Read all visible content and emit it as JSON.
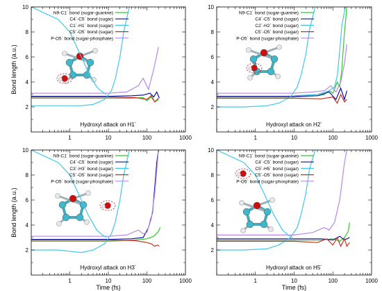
{
  "chart_data": [
    {
      "type": "line",
      "xscale": "log",
      "xlim": [
        0.1,
        1000
      ],
      "ylim": [
        0,
        10
      ],
      "xticks": [
        "1",
        "10",
        "100",
        "1000"
      ],
      "yticks": [
        "2",
        "4",
        "6",
        "8",
        "10"
      ],
      "xlabel": "",
      "ylabel": "Bond length (a.u.)",
      "annotation": "Hydroxyl attack on H1´",
      "legend": "top-left",
      "series": [
        {
          "name": "N9-C1´ bond (sugar-guanine)",
          "color": "#2ecc2e",
          "x": [
            0.1,
            10,
            40,
            80,
            100,
            130,
            160,
            200
          ],
          "y": [
            2.7,
            2.7,
            2.7,
            2.75,
            2.5,
            2.8,
            2.4,
            2.6
          ]
        },
        {
          "name": "C4´-C5´ bond (sugar)",
          "color": "#1010a0",
          "x": [
            0.1,
            10,
            40,
            80,
            120,
            150,
            180,
            210
          ],
          "y": [
            2.85,
            2.85,
            2.9,
            2.95,
            3.1,
            2.8,
            3.2,
            2.7
          ]
        },
        {
          "name": "C1´-H1´ bond (sugar)",
          "color": "#40c8ee",
          "x": [
            0.1,
            0.5,
            1,
            2,
            4,
            8,
            12,
            15,
            20,
            25,
            35
          ],
          "y": [
            2.1,
            2.1,
            2.1,
            2.1,
            2.2,
            2.6,
            3.3,
            4.2,
            6.0,
            8.0,
            10
          ]
        },
        {
          "name": "C5´-O5´ bond (sugar)",
          "color": "#c8301c",
          "x": [
            0.1,
            10,
            50,
            100,
            130,
            160,
            200
          ],
          "y": [
            2.8,
            2.8,
            2.75,
            2.6,
            2.9,
            2.4,
            2.7
          ]
        },
        {
          "name": "P-O5´ bond (sugar-phosphate)",
          "color": "#b888e8",
          "x": [
            0.1,
            10,
            30,
            60,
            80,
            110,
            150,
            200
          ],
          "y": [
            3.1,
            3.1,
            3.2,
            3.7,
            4.3,
            3.4,
            5.0,
            6.8
          ]
        },
        {
          "name": "",
          "color": "#40c8ee",
          "x": [
            0.1,
            0.5,
            1,
            2,
            3,
            5,
            7,
            9
          ],
          "y": [
            10,
            9.0,
            8.0,
            6.0,
            4.8,
            3.6,
            3.2,
            3.0
          ]
        }
      ]
    },
    {
      "type": "line",
      "xscale": "log",
      "xlim": [
        0.1,
        1000
      ],
      "ylim": [
        0,
        10
      ],
      "xticks": [
        "1",
        "10",
        "100",
        "1000"
      ],
      "yticks": [
        "2",
        "4",
        "6",
        "8",
        "10"
      ],
      "xlabel": "",
      "ylabel": "",
      "annotation": "Hydroxyl attack on H2´",
      "legend": "top-left",
      "series": [
        {
          "name": "N9-C1´ bond (sugar-guanine)",
          "color": "#2ecc2e",
          "x": [
            0.1,
            10,
            40,
            60,
            80,
            100,
            130,
            150,
            170,
            200,
            230
          ],
          "y": [
            2.8,
            2.8,
            2.9,
            3.0,
            3.3,
            3.1,
            4.0,
            3.6,
            5.0,
            8.0,
            10
          ]
        },
        {
          "name": "C4´-C5´ bond (sugar)",
          "color": "#1010a0",
          "x": [
            0.1,
            10,
            40,
            80,
            120,
            160,
            200,
            230
          ],
          "y": [
            2.85,
            2.85,
            2.9,
            3.2,
            2.6,
            3.5,
            2.6,
            3.3
          ]
        },
        {
          "name": "C2´-H2´ bond (sugar)",
          "color": "#40c8ee",
          "x": [
            0.1,
            0.5,
            1,
            2,
            4,
            8,
            12,
            15,
            20,
            25,
            35
          ],
          "y": [
            2.0,
            2.0,
            2.05,
            2.1,
            2.3,
            2.8,
            3.6,
            4.5,
            6.2,
            8.2,
            10
          ]
        },
        {
          "name": "C5´-O5´ bond (sugar)",
          "color": "#c8301c",
          "x": [
            0.1,
            10,
            50,
            100,
            130,
            160,
            200,
            230
          ],
          "y": [
            2.7,
            2.7,
            2.65,
            2.8,
            2.3,
            3.0,
            2.4,
            2.6
          ]
        },
        {
          "name": "P-O5´ bond (sugar-phosphate)",
          "color": "#b888e8",
          "x": [
            0.1,
            10,
            30,
            60,
            90,
            120,
            160,
            200,
            230
          ],
          "y": [
            3.1,
            3.1,
            3.2,
            3.3,
            3.7,
            3.2,
            4.0,
            5.5,
            7.0
          ]
        },
        {
          "name": "",
          "color": "#40c8ee",
          "x": [
            10,
            40,
            80,
            110,
            130,
            150,
            170,
            210
          ],
          "y": [
            2.9,
            3.0,
            3.3,
            3.6,
            4.5,
            6.5,
            8.5,
            10
          ]
        }
      ]
    },
    {
      "type": "line",
      "xscale": "log",
      "xlim": [
        0.1,
        1000
      ],
      "ylim": [
        0,
        10
      ],
      "xticks": [
        "1",
        "10",
        "100",
        "1000"
      ],
      "yticks": [
        "2",
        "4",
        "6",
        "8",
        "10"
      ],
      "xlabel": "Time (fs)",
      "ylabel": "Bond length (a.u.)",
      "annotation": "Hydroxyl attack on H3´",
      "legend": "top-left",
      "series": [
        {
          "name": "N9-C1´ bond (sugar-guanine)",
          "color": "#2ecc2e",
          "x": [
            0.1,
            10,
            50,
            100,
            150,
            200,
            220
          ],
          "y": [
            2.7,
            2.7,
            2.8,
            2.9,
            3.1,
            3.5,
            3.8
          ]
        },
        {
          "name": "C4´-C5´ bond (sugar)",
          "color": "#1010a0",
          "x": [
            0.1,
            10,
            40,
            80,
            110,
            140,
            160,
            180,
            200
          ],
          "y": [
            2.85,
            2.85,
            2.9,
            3.0,
            3.8,
            5.0,
            7.0,
            9.0,
            10
          ]
        },
        {
          "name": "C3´-H3´ bond (sugar)",
          "color": "#40c8ee",
          "x": [
            0.1,
            0.5,
            1,
            2,
            4,
            8,
            12,
            15,
            20,
            25,
            35
          ],
          "y": [
            2.0,
            2.0,
            1.9,
            1.8,
            2.0,
            2.5,
            3.3,
            4.2,
            6.0,
            8.0,
            10
          ]
        },
        {
          "name": "C5´-O5´ bond (sugar)",
          "color": "#c8301c",
          "x": [
            0.1,
            10,
            50,
            100,
            130,
            160,
            190,
            210
          ],
          "y": [
            2.8,
            2.8,
            2.75,
            2.6,
            2.5,
            2.3,
            2.4,
            2.3
          ]
        },
        {
          "name": "P-O5´ bond (sugar-phosphate)",
          "color": "#b888e8",
          "x": [
            0.1,
            10,
            30,
            60,
            80,
            100,
            130,
            160,
            200
          ],
          "y": [
            3.1,
            3.1,
            3.2,
            3.6,
            3.3,
            3.4,
            4.5,
            6.5,
            10
          ]
        },
        {
          "name": "",
          "color": "#40c8ee",
          "x": [
            0.1,
            0.5,
            1,
            2,
            3,
            5,
            7,
            9
          ],
          "y": [
            10,
            9.0,
            8.0,
            6.0,
            4.8,
            3.6,
            3.2,
            3.0
          ]
        }
      ]
    },
    {
      "type": "line",
      "xscale": "log",
      "xlim": [
        0.1,
        1000
      ],
      "ylim": [
        0,
        10
      ],
      "xticks": [
        "1",
        "10",
        "100",
        "1000"
      ],
      "yticks": [
        "2",
        "4",
        "6",
        "8",
        "10"
      ],
      "xlabel": "Time (fs)",
      "ylabel": "",
      "annotation": "Hydroxyl attack on H5´",
      "legend": "top-left",
      "series": [
        {
          "name": "N9-C1´ bond (sugar-guanine)",
          "color": "#2ecc2e",
          "x": [
            0.1,
            10,
            50,
            100,
            150,
            200,
            250,
            270
          ],
          "y": [
            2.8,
            2.8,
            2.8,
            2.9,
            2.7,
            3.0,
            3.5,
            4.2
          ]
        },
        {
          "name": "C4´-C5´ bond (sugar)",
          "color": "#1010a0",
          "x": [
            0.1,
            10,
            50,
            100,
            150,
            200,
            270
          ],
          "y": [
            2.9,
            2.9,
            2.9,
            2.8,
            3.1,
            2.8,
            3.0
          ]
        },
        {
          "name": "C5´-H5´ bond (sugar)",
          "color": "#40c8ee",
          "x": [
            0.1,
            0.5,
            1,
            2,
            4,
            8,
            12,
            15,
            20,
            25,
            35
          ],
          "y": [
            2.0,
            2.0,
            2.05,
            2.1,
            2.4,
            3.0,
            3.8,
            4.8,
            6.5,
            8.5,
            10
          ]
        },
        {
          "name": "C5´-O5´ bond (sugar)",
          "color": "#c8301c",
          "x": [
            0.1,
            10,
            40,
            70,
            100,
            130,
            160,
            200,
            230,
            270
          ],
          "y": [
            2.7,
            2.7,
            2.6,
            2.9,
            2.4,
            3.0,
            2.3,
            2.9,
            2.3,
            2.6
          ]
        },
        {
          "name": "P-O5´ bond (sugar-phosphate)",
          "color": "#b888e8",
          "x": [
            0.1,
            10,
            30,
            60,
            80,
            110,
            150,
            200,
            230
          ],
          "y": [
            3.2,
            3.2,
            3.4,
            3.8,
            3.6,
            4.2,
            6.0,
            9.0,
            10
          ]
        },
        {
          "name": "",
          "color": "#40c8ee",
          "x": [
            0.1,
            0.5,
            1,
            2,
            3,
            5,
            7,
            9
          ],
          "y": [
            10,
            9.0,
            8.0,
            6.0,
            4.8,
            3.6,
            3.2,
            3.0
          ]
        }
      ]
    }
  ]
}
